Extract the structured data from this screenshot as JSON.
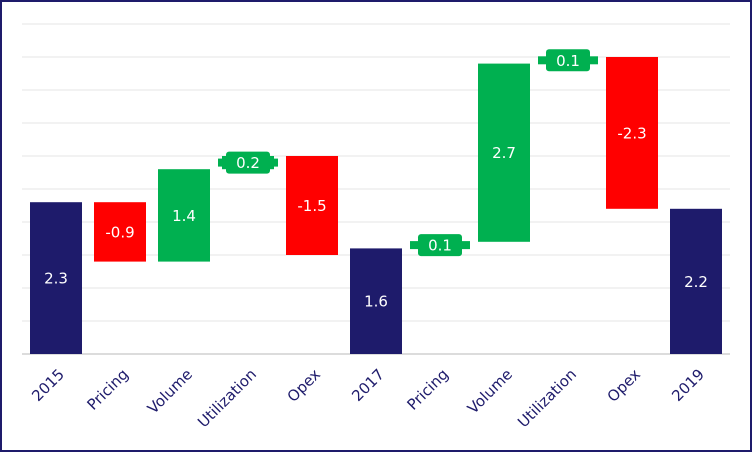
{
  "chart_data": {
    "type": "waterfall",
    "categories": [
      "2015",
      "Pricing",
      "Volume",
      "Utilization",
      "Opex",
      "2017",
      "Pricing",
      "Volume",
      "Utilization",
      "Opex",
      "2019"
    ],
    "values": [
      2.3,
      -0.9,
      1.4,
      0.2,
      -1.5,
      1.6,
      0.1,
      2.7,
      0.1,
      -2.3,
      2.2
    ],
    "measure": [
      "total",
      "relative",
      "relative",
      "relative",
      "relative",
      "total",
      "relative",
      "relative",
      "relative",
      "relative",
      "total"
    ],
    "colors": {
      "total": "#1e1b6b",
      "increase": "#00b050",
      "decrease": "#ff0000"
    },
    "ylim": [
      0,
      5
    ],
    "yticks": [
      0,
      0.5,
      1,
      1.5,
      2,
      2.5,
      3,
      3.5,
      4,
      4.5,
      5
    ],
    "grid": true
  }
}
